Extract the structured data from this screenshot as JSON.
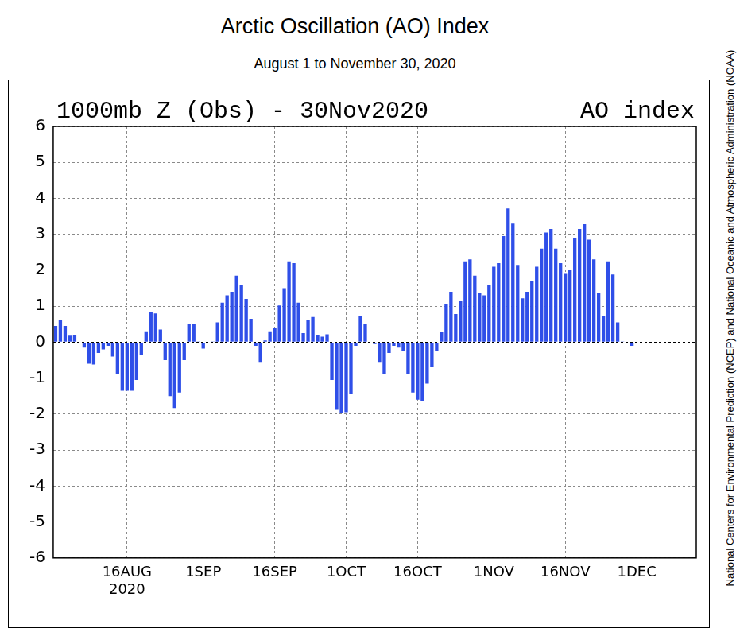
{
  "chart_data": {
    "type": "bar",
    "title": "Arctic Oscillation (AO) Index",
    "subtitle": "August 1 to November 30, 2020",
    "annotations": [
      "1000mb Z (Obs) - 30Nov2020",
      "AO index",
      "National Centers for Environmental Prediction (NCEP) and National Oceanic and Atmospheric Administration (NOAA)"
    ],
    "categories": [
      null,
      null,
      null,
      null,
      null,
      null,
      null,
      null,
      null,
      null,
      null,
      null,
      null,
      null,
      null,
      "16AUG 2020",
      null,
      null,
      null,
      null,
      null,
      null,
      null,
      null,
      null,
      null,
      null,
      null,
      null,
      null,
      null,
      "1SEP",
      null,
      null,
      null,
      null,
      null,
      null,
      null,
      null,
      null,
      null,
      null,
      null,
      null,
      null,
      "16SEP",
      null,
      null,
      null,
      null,
      null,
      null,
      null,
      null,
      null,
      null,
      null,
      null,
      null,
      null,
      "1OCT",
      null,
      null,
      null,
      null,
      null,
      null,
      null,
      null,
      null,
      null,
      null,
      null,
      null,
      null,
      "16OCT",
      null,
      null,
      null,
      null,
      null,
      null,
      null,
      null,
      null,
      null,
      null,
      null,
      null,
      null,
      null,
      "1NOV",
      null,
      null,
      null,
      null,
      null,
      null,
      null,
      null,
      null,
      null,
      null,
      null,
      null,
      null,
      "16NOV",
      null,
      null,
      null,
      null,
      null,
      null,
      null,
      null,
      null,
      null,
      null,
      null,
      null,
      null,
      "1DEC",
      null,
      null,
      null,
      null,
      null,
      null,
      null,
      null,
      null,
      null,
      null,
      null
    ],
    "values": [
      0.45,
      0.62,
      0.45,
      0.18,
      0.2,
      -0.02,
      -0.15,
      -0.6,
      -0.62,
      -0.3,
      -0.2,
      -0.1,
      -0.4,
      -0.9,
      -1.35,
      -1.35,
      -1.35,
      -1.05,
      -0.35,
      0.3,
      0.83,
      0.8,
      0.35,
      -0.5,
      -1.5,
      -1.83,
      -1.4,
      -0.5,
      0.5,
      0.52,
      0.02,
      -0.18,
      0.0,
      0.02,
      0.55,
      1.1,
      1.3,
      1.4,
      1.85,
      1.6,
      1.2,
      0.65,
      -0.1,
      -0.55,
      0.05,
      0.3,
      0.4,
      1.02,
      1.5,
      2.25,
      2.2,
      1.1,
      0.25,
      0.62,
      0.7,
      0.2,
      0.15,
      0.22,
      -1.05,
      -1.88,
      -1.97,
      -1.95,
      -1.45,
      -0.1,
      0.72,
      0.5,
      0.0,
      -0.05,
      -0.55,
      -0.9,
      -0.3,
      -0.1,
      -0.15,
      -0.25,
      -0.9,
      -1.4,
      -1.6,
      -1.65,
      -1.15,
      -0.7,
      -0.25,
      0.28,
      1.05,
      1.4,
      0.78,
      1.15,
      2.25,
      2.3,
      1.85,
      1.38,
      1.3,
      1.6,
      2.1,
      2.2,
      2.95,
      3.72,
      3.3,
      2.15,
      1.22,
      1.4,
      1.7,
      2.1,
      2.6,
      3.05,
      3.15,
      2.6,
      2.2,
      1.9,
      2.0,
      2.9,
      3.15,
      3.28,
      2.85,
      2.3,
      1.37,
      0.72,
      2.25,
      1.88,
      0.55,
      0.02,
      0.0,
      -0.1,
      null,
      null,
      null,
      null,
      null,
      null,
      null,
      null,
      null,
      null,
      null,
      null,
      null
    ],
    "color": "#2f4fe8",
    "ylim": [
      -6,
      6
    ],
    "yticks": [
      -6,
      -5,
      -4,
      -3,
      -2,
      -1,
      0,
      1,
      2,
      3,
      4,
      5,
      6
    ],
    "grid": true
  }
}
